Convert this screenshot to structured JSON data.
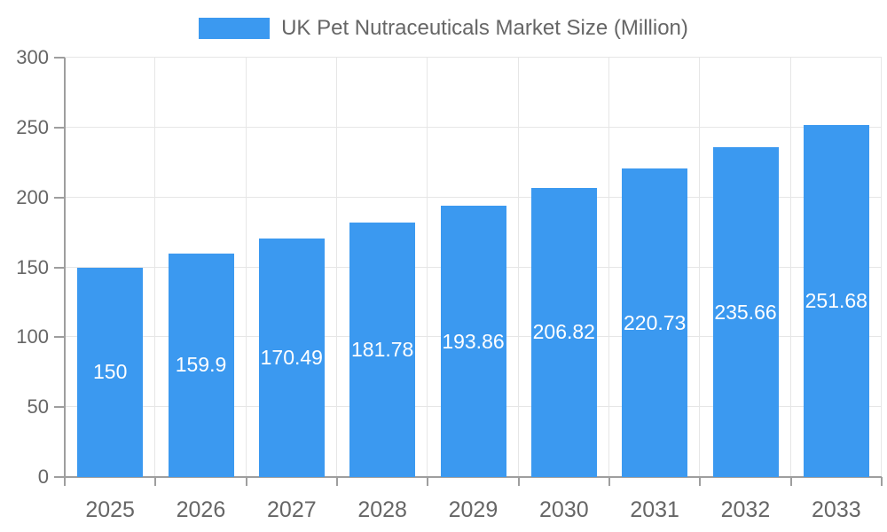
{
  "legend": {
    "label": "UK Pet Nutraceuticals Market Size (Million)"
  },
  "chart_data": {
    "type": "bar",
    "title": "UK Pet Nutraceuticals Market Size (Million)",
    "categories": [
      "2025",
      "2026",
      "2027",
      "2028",
      "2029",
      "2030",
      "2031",
      "2032",
      "2033"
    ],
    "values": [
      150,
      159.9,
      170.49,
      181.78,
      193.86,
      206.82,
      220.73,
      235.66,
      251.68
    ],
    "value_labels": [
      "150",
      "159.9",
      "170.49",
      "181.78",
      "193.86",
      "206.82",
      "220.73",
      "235.66",
      "251.68"
    ],
    "xlabel": "",
    "ylabel": "",
    "ylim": [
      0,
      300
    ],
    "ytick_step": 50,
    "ytick_labels": [
      "0",
      "50",
      "100",
      "150",
      "200",
      "250",
      "300"
    ],
    "grid": true,
    "legend_position": "top",
    "colors": {
      "bar": "#3B99F0",
      "grid": "#E6E6E6",
      "axis": "#9E9E9E",
      "text": "#666666",
      "bar_label": "#FFFFFF",
      "background": "#FFFFFF"
    }
  }
}
